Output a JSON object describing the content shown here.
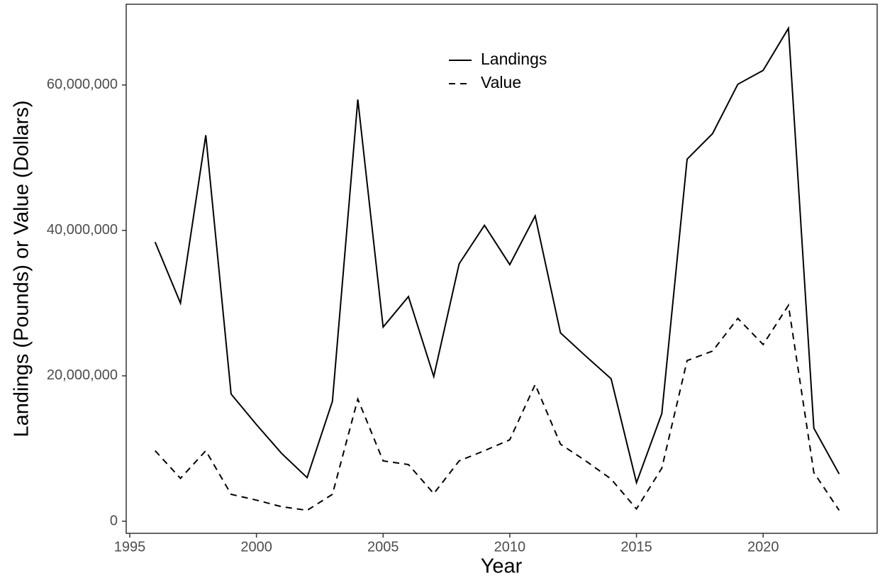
{
  "chart_data": {
    "type": "line",
    "x_label": "Year",
    "y_label": "Landings (Pounds) or Value (Dollars)",
    "x": [
      1996,
      1997,
      1998,
      1999,
      2000,
      2001,
      2002,
      2003,
      2004,
      2005,
      2006,
      2007,
      2008,
      2009,
      2010,
      2011,
      2012,
      2013,
      2014,
      2015,
      2016,
      2017,
      2018,
      2019,
      2020,
      2021,
      2022,
      2023
    ],
    "series": [
      {
        "name": "Landings",
        "color": "#000000",
        "linestyle": "solid",
        "values": [
          38400000,
          30000000,
          53100000,
          17500000,
          13300000,
          9300000,
          6000000,
          16500000,
          58000000,
          26700000,
          30900000,
          19900000,
          35400000,
          40700000,
          35300000,
          42000000,
          25900000,
          22700000,
          19600000,
          5300000,
          14800000,
          49800000,
          53300000,
          60100000,
          62000000,
          67800000,
          12800000,
          6500000
        ]
      },
      {
        "name": "Value",
        "color": "#000000",
        "linestyle": "dashed",
        "values": [
          9700000,
          5900000,
          9700000,
          3700000,
          2900000,
          2000000,
          1500000,
          3700000,
          16800000,
          8300000,
          7800000,
          3800000,
          8300000,
          9700000,
          11200000,
          18800000,
          10600000,
          8300000,
          5800000,
          1700000,
          7300000,
          22100000,
          23400000,
          27900000,
          24300000,
          29700000,
          6700000,
          1500000
        ]
      }
    ],
    "xlim": [
      1994.86,
      2024.5
    ],
    "xticks": [
      1995,
      2000,
      2005,
      2010,
      2015,
      2020
    ],
    "ylim": [
      -1660000,
      71100000
    ],
    "yticks": [
      0,
      {
        "value": 20000000,
        "label": "20,000,000"
      },
      {
        "value": 40000000,
        "label": "40,000,000"
      },
      {
        "value": 60000000,
        "label": "60,000,000"
      }
    ],
    "grid": false,
    "legend": "top"
  }
}
